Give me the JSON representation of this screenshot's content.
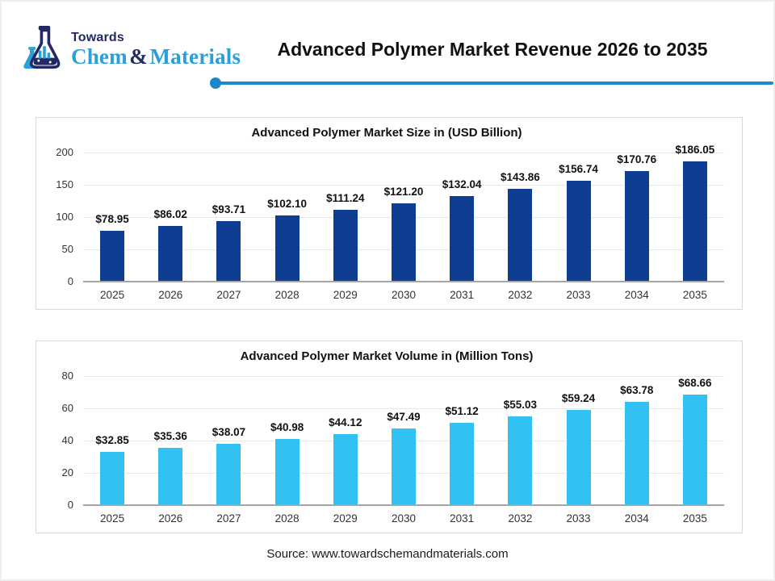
{
  "header": {
    "logo": {
      "towards": "Towards",
      "chem": "Chem",
      "amp": "&",
      "materials": "Materials",
      "navy": "#232a63",
      "blue": "#2a9fd8"
    },
    "title": "Advanced Polymer Market Revenue 2026 to 2035",
    "divider_color": "#1b87cc"
  },
  "footer": {
    "source": "Source: www.towardschemandmaterials.com"
  },
  "chart_data": [
    {
      "type": "bar",
      "title": "Advanced Polymer Market Size in (USD Billion)",
      "categories": [
        "2025",
        "2026",
        "2027",
        "2028",
        "2029",
        "2030",
        "2031",
        "2032",
        "2033",
        "2034",
        "2035"
      ],
      "values": [
        78.95,
        86.02,
        93.71,
        102.1,
        111.24,
        121.2,
        132.04,
        143.86,
        156.74,
        170.76,
        186.05
      ],
      "label_prefix": "$",
      "bar_color": "#0e3d91",
      "ylim": [
        0,
        200
      ],
      "ytick_step": 50,
      "grid": true,
      "legend": "none"
    },
    {
      "type": "bar",
      "title": "Advanced Polymer Market Volume in (Million Tons)",
      "categories": [
        "2025",
        "2026",
        "2027",
        "2028",
        "2029",
        "2030",
        "2031",
        "2032",
        "2033",
        "2034",
        "2035"
      ],
      "values": [
        32.85,
        35.36,
        38.07,
        40.98,
        44.12,
        47.49,
        51.12,
        55.03,
        59.24,
        63.78,
        68.66
      ],
      "label_prefix": "$",
      "bar_color": "#31c1f3",
      "ylim": [
        0,
        80
      ],
      "ytick_step": 20,
      "grid": true,
      "legend": "none"
    }
  ]
}
